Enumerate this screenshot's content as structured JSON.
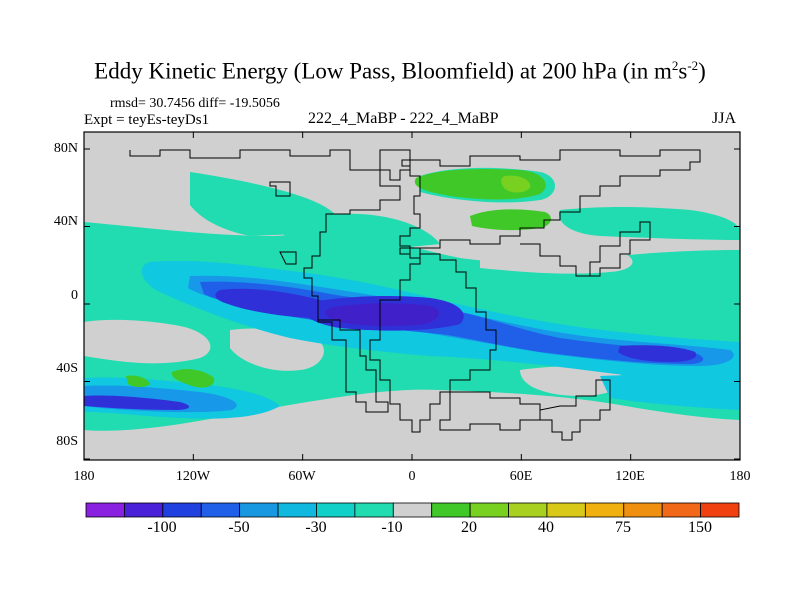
{
  "title": {
    "main": "Eddy Kinetic Energy (Low Pass, Bloomfield) at 200 hPa (in m",
    "sup1": "2",
    "mid": "s",
    "sup2": "-2",
    "end": ")"
  },
  "stats": "rmsd= 30.7456 diff= -19.5056",
  "expt": "Expt = teyEs-teyDs1",
  "center_label": "222_4_MaBP - 222_4_MaBP",
  "season": "JJA",
  "axes": {
    "y_ticks": [
      "80N",
      "40N",
      "0",
      "40S",
      "80S"
    ],
    "y_values": [
      80,
      40,
      0,
      -40,
      -80
    ],
    "x_ticks": [
      "180",
      "120W",
      "60W",
      "0",
      "60E",
      "120E",
      "180"
    ],
    "x_values": [
      -180,
      -120,
      -60,
      0,
      60,
      120,
      180
    ]
  },
  "colorbar": {
    "colors": [
      "#8a20e0",
      "#4a20d8",
      "#2040e0",
      "#2060e8",
      "#1898e0",
      "#10b8e0",
      "#10d0c8",
      "#20dcb0",
      "#d0d0d0",
      "#40c828",
      "#78d020",
      "#a8d020",
      "#d8c818",
      "#f0b010",
      "#f09010",
      "#f06818",
      "#f04010"
    ],
    "labels": [
      "-100",
      "-50",
      "-30",
      "-10",
      "20",
      "40",
      "75",
      "150"
    ]
  },
  "colors": {
    "neutral": "#d0d0d0",
    "teal": "#20dcb0",
    "cyan": "#10c8e0",
    "light_blue": "#1898e8",
    "blue": "#2060e8",
    "deep_blue": "#3030d8",
    "indigo": "#4020c8",
    "green": "#40c828",
    "light_green": "#78d020"
  }
}
